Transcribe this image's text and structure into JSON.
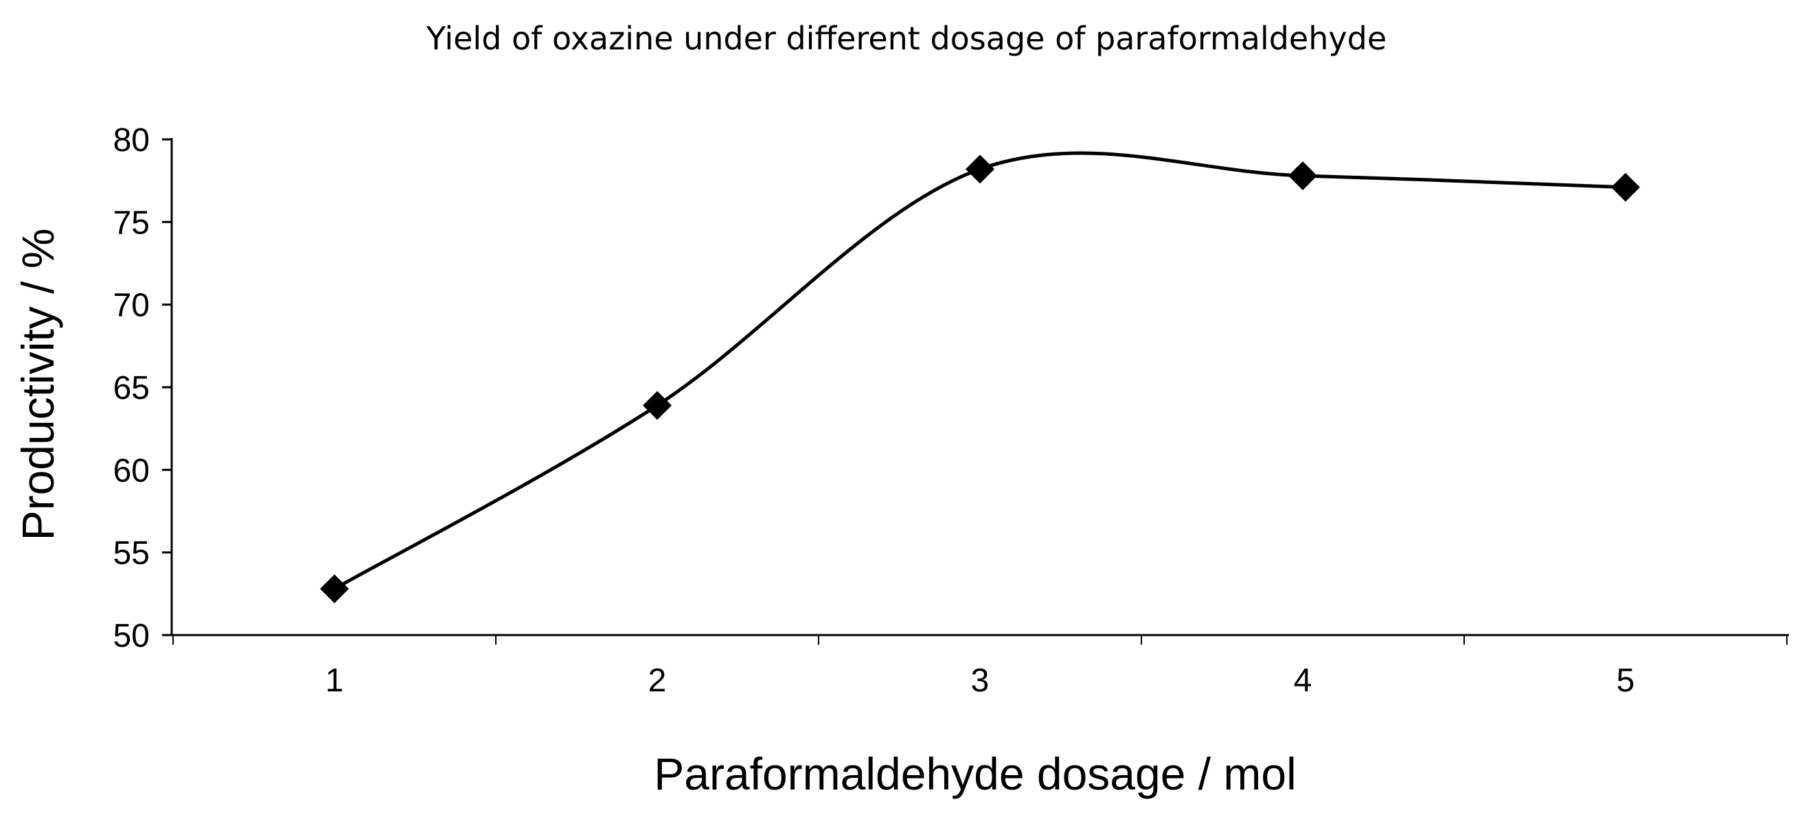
{
  "chart_data": {
    "type": "line",
    "title": "Yield of oxazine under different dosage of paraformaldehyde",
    "xlabel": "Paraformaldehyde dosage / mol",
    "ylabel": "Productivity / %",
    "x": [
      1,
      2,
      3,
      4,
      5
    ],
    "x_tick_labels": [
      "1",
      "2",
      "3",
      "4",
      "5"
    ],
    "y_tick_labels": [
      "50",
      "55",
      "60",
      "65",
      "70",
      "75",
      "80"
    ],
    "series": [
      {
        "values": [
          52.8,
          63.9,
          78.2,
          77.8,
          77.1
        ],
        "marker": "diamond",
        "smooth": true
      }
    ],
    "ylim": [
      50,
      80
    ],
    "grid": false,
    "legend": "none",
    "colors": {
      "line": "#000000",
      "marker": "#000000",
      "axis": "#000000"
    }
  }
}
